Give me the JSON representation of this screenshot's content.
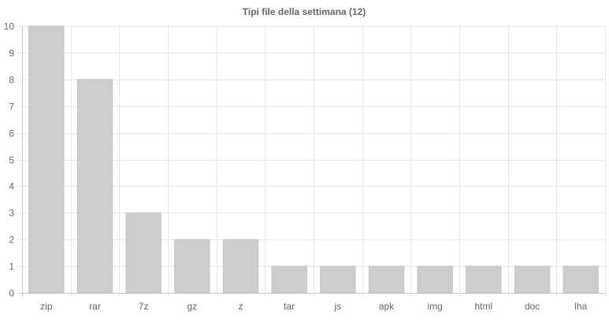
{
  "chart_data": {
    "type": "bar",
    "title": "Tipi file della settimana (12)",
    "xlabel": "",
    "ylabel": "",
    "categories": [
      "zip",
      "rar",
      "7z",
      "gz",
      "z",
      "tar",
      "js",
      "apk",
      "img",
      "html",
      "doc",
      "lha"
    ],
    "values": [
      10,
      8,
      3,
      2,
      2,
      1,
      1,
      1,
      1,
      1,
      1,
      1
    ],
    "ylim": [
      0,
      10
    ],
    "yticks": [
      "0",
      "1",
      "2",
      "3",
      "4",
      "5",
      "6",
      "7",
      "8",
      "9",
      "10"
    ],
    "grid": true,
    "legend": "none",
    "colors": {
      "bar_fill": "#cdcdcf",
      "bar_stroke": "#c4c4c6",
      "grid": "#e6e6e6",
      "text": "#666666"
    }
  }
}
